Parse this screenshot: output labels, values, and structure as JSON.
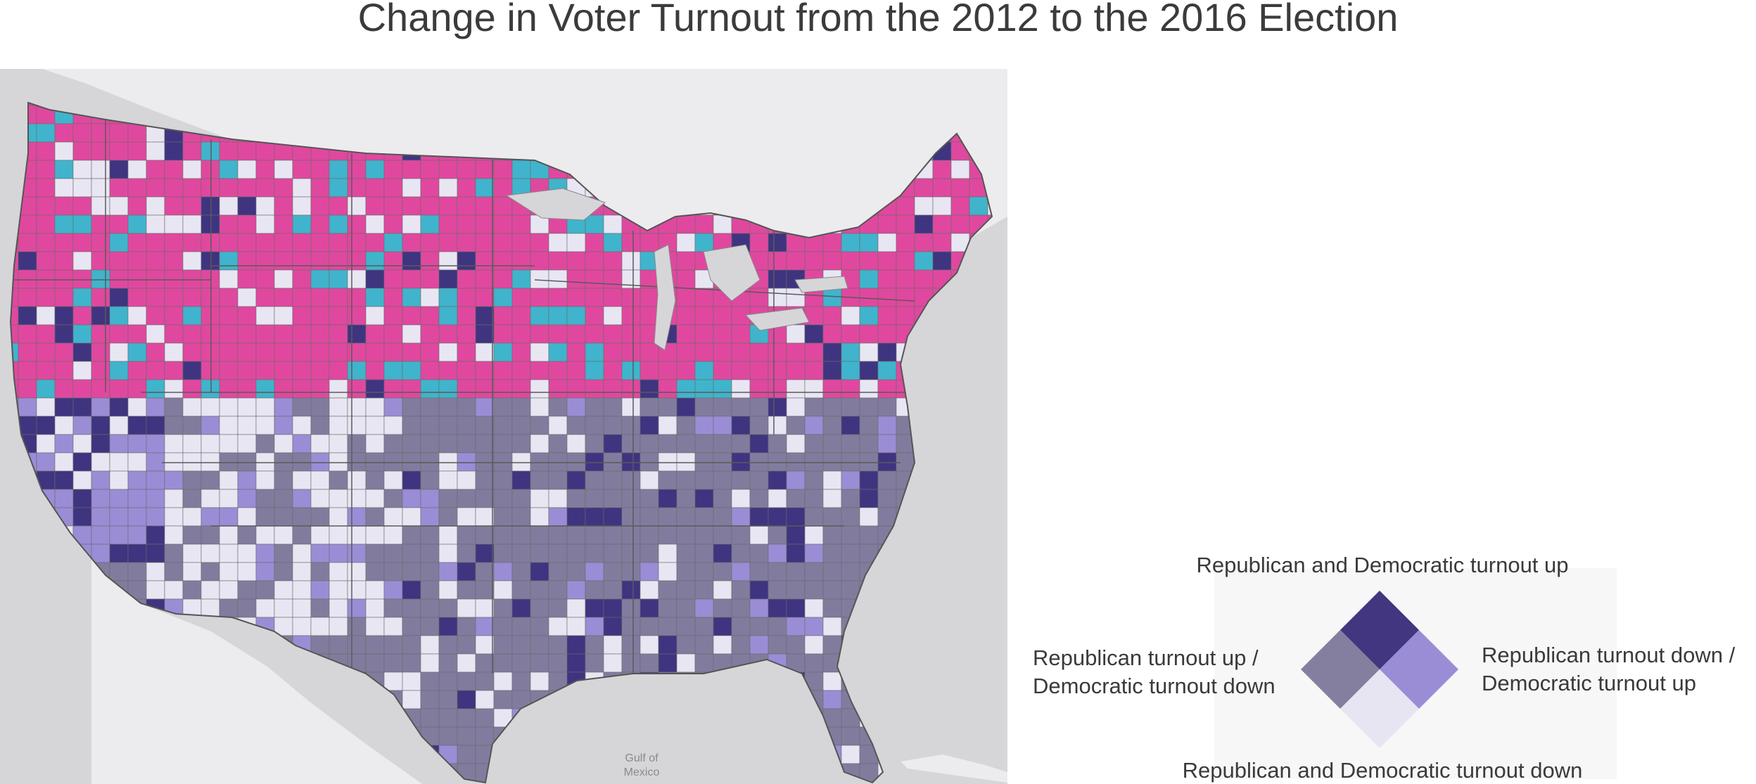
{
  "title": "Change in Voter Turnout from the 2012 to the 2016 Election",
  "map": {
    "water_label": "Gulf of Mexico",
    "colors": {
      "land_background": "#ececee",
      "water": "#d6d6d8",
      "both_up_north": "#e0489f",
      "rep_down_dem_up_north": "#40b4cc",
      "both_up": "#3f3480",
      "rep_up_dem_down": "#817c9e",
      "rep_down_dem_up": "#9a8dd6",
      "both_down": "#e9e6f3",
      "county_border": "#6a6a6a"
    }
  },
  "legend": {
    "top": "Republican and Democratic turnout up",
    "bottom": "Republican and Democratic turnout down",
    "left_line1": "Republican turnout up /",
    "left_line2": "Democratic turnout down",
    "right_line1": "Republican turnout down /",
    "right_line2": "Democratic turnout up",
    "colors": {
      "top": "#41367f",
      "left": "#847f9e",
      "right": "#9a8dd6",
      "bottom": "#e8e5f2"
    }
  }
}
